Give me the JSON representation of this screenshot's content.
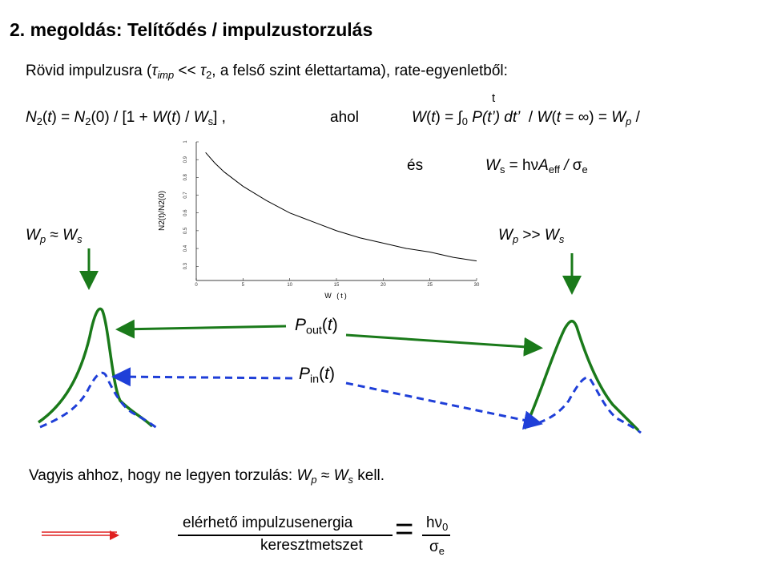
{
  "title": "2. megoldás: Telítődés / impulzustorzulás",
  "intro": [
    "Rövid impulzusra (",
    "τ",
    "imp",
    " << ",
    "τ",
    "2",
    ", a felső szint élettartama), rate-egyenletből:"
  ],
  "eq1": [
    "N",
    "2",
    "(",
    "t",
    ") = ",
    "N",
    "2",
    "(0) / [1 + ",
    "W",
    "(",
    "t",
    ") / ",
    "W",
    "s",
    "] ,"
  ],
  "ahol": "ahol",
  "eq2": [
    "W",
    "(",
    "t",
    ") = ∫",
    "0",
    " P(t’) dt’",
    "  / ",
    "W",
    "(",
    "t",
    " = ∞) = ",
    "W",
    "p",
    " /"
  ],
  "eq2_upper": "t",
  "es": "és",
  "eq3": [
    "W",
    "s",
    " = hν",
    "A",
    "eff",
    " / ",
    "σ",
    "e"
  ],
  "left_label": [
    "W",
    "p",
    " ≈ ",
    "W",
    "s"
  ],
  "right_label": [
    "W",
    "p",
    " >> ",
    "W",
    "s"
  ],
  "pout": [
    "P",
    "out",
    "(",
    "t",
    ")"
  ],
  "pin": [
    "P",
    "in",
    "(",
    "t",
    ")"
  ],
  "conclusion": [
    "Vagyis ahhoz, hogy ne legyen torzulás: ",
    "W",
    "p",
    " ≈ ",
    "W",
    "s",
    " kell."
  ],
  "formula": {
    "numerator": "elérhető impulzusenergia",
    "denominator": "keresztmetszet",
    "equals": "=",
    "right_numerator": [
      "hν",
      "0"
    ],
    "right_denominator": [
      "σ",
      "e"
    ]
  },
  "chart_data": {
    "type": "line",
    "xlabel": "W (t)",
    "ylabel": "N2(t)/N2(0)",
    "x": [
      1,
      2,
      3,
      5,
      7.5,
      10,
      12.5,
      15,
      17.5,
      20,
      22.5,
      25,
      27.5,
      30
    ],
    "series": [
      {
        "color": "#000000",
        "values": [
          0.94,
          0.88,
          0.83,
          0.75,
          0.67,
          0.6,
          0.55,
          0.5,
          0.46,
          0.43,
          0.4,
          0.38,
          0.35,
          0.33
        ]
      }
    ],
    "xlim": [
      0,
      30
    ],
    "xticks": [
      0,
      5,
      10,
      15,
      20,
      25,
      30
    ],
    "ylim": [
      0.22,
      1.0
    ],
    "yticks": [
      0.3,
      0.4,
      0.5,
      0.6,
      0.7,
      0.8,
      0.9,
      1.0
    ]
  }
}
